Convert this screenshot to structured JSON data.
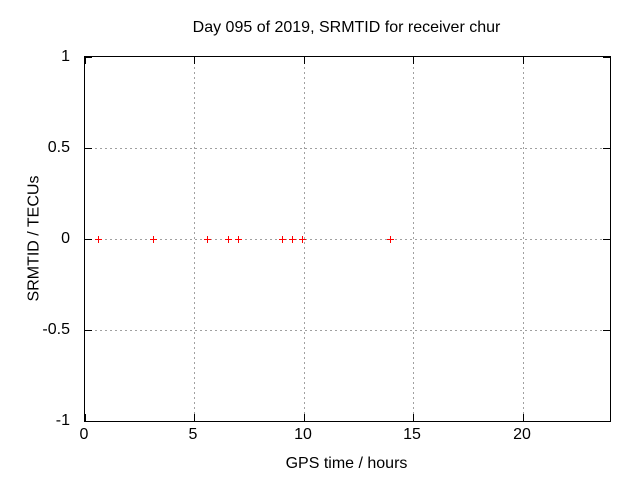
{
  "chart_data": {
    "type": "scatter",
    "title": "Day 095 of 2019, SRMTID for receiver chur",
    "xlabel": "GPS time / hours",
    "ylabel": "SRMTID / TECUs",
    "xlim": [
      0,
      24
    ],
    "ylim": [
      -1,
      1
    ],
    "xticks": [
      0,
      5,
      10,
      15,
      20
    ],
    "xtick_labels": [
      "0",
      "5",
      "10",
      "15",
      "20"
    ],
    "yticks": [
      1,
      0.5,
      0,
      -0.5,
      -1
    ],
    "ytick_labels": [
      "1",
      "0.5",
      "0",
      "-0.5",
      "-1"
    ],
    "grid": true,
    "legend": "none",
    "series": [
      {
        "name": "SRMTID",
        "marker": "plus",
        "color": "#ff0000",
        "x": [
          0.61,
          3.1,
          5.59,
          6.52,
          6.99,
          8.99,
          9.45,
          9.93,
          13.94
        ],
        "y": [
          0,
          0,
          0,
          0,
          0,
          0,
          0,
          0,
          0
        ]
      }
    ],
    "colors": {
      "marker": "#ff0000",
      "grid": "#a0a0a0",
      "axis": "#000000",
      "text": "#000000",
      "background": "#ffffff"
    }
  }
}
